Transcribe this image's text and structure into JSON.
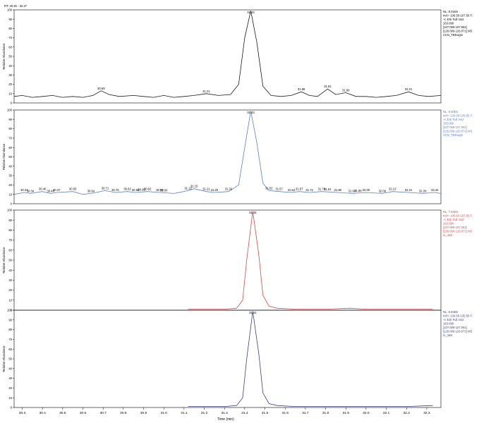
{
  "rt_range": "RT: 30.26 - 32.37",
  "x_axis": {
    "title": "Time (min)",
    "ticks": [
      "30.3",
      "30.4",
      "30.5",
      "30.6",
      "30.7",
      "30.8",
      "30.9",
      "31.0",
      "31.1",
      "31.2",
      "31.3",
      "31.4",
      "31.5",
      "31.6",
      "31.7",
      "31.8",
      "31.9",
      "32.0",
      "32.1",
      "32.2",
      "32.3"
    ]
  },
  "chart_data": [
    {
      "type": "line",
      "color": "#1a1a1a",
      "ylabel": "Relative Abundance",
      "ylim": [
        0,
        100
      ],
      "xlim": [
        30.26,
        32.37
      ],
      "info": [
        "NL: 8.01E5",
        "m/z= 106.50-107.50 F:",
        "+c ESI Full ms2",
        "163.090",
        "[107.009-107.061]",
        "[126.009-126.071] MS",
        "ACN_TEEwgm"
      ],
      "peaks": [
        {
          "x": 30.69,
          "label": "30.69"
        },
        {
          "x": 31.21,
          "label": "31.21"
        },
        {
          "x": 31.43,
          "label": "31.43"
        },
        {
          "x": 31.68,
          "label": "31.68"
        },
        {
          "x": 31.81,
          "label": "31.81"
        },
        {
          "x": 31.9,
          "label": "31.90"
        },
        {
          "x": 32.21,
          "label": "32.21"
        }
      ],
      "series": [
        {
          "x": [
            30.26,
            30.3,
            30.35,
            30.4,
            30.45,
            30.5,
            30.55,
            30.6,
            30.65,
            30.69,
            30.73,
            30.78,
            30.85,
            30.9,
            30.95,
            31.0,
            31.05,
            31.1,
            31.15,
            31.21,
            31.27,
            31.33,
            31.37,
            31.4,
            31.43,
            31.46,
            31.49,
            31.53,
            31.58,
            31.63,
            31.68,
            31.72,
            31.76,
            31.81,
            31.85,
            31.9,
            31.95,
            32.0,
            32.05,
            32.1,
            32.15,
            32.21,
            32.26,
            32.31,
            32.37
          ],
          "y": [
            7,
            8,
            6,
            7,
            8,
            6,
            7,
            6,
            8,
            13,
            9,
            7,
            8,
            7,
            6,
            8,
            6,
            7,
            8,
            10,
            8,
            9,
            20,
            70,
            99,
            65,
            18,
            8,
            7,
            8,
            12,
            8,
            7,
            15,
            9,
            11,
            7,
            7,
            6,
            7,
            8,
            12,
            8,
            7,
            8
          ]
        }
      ]
    },
    {
      "type": "line",
      "color": "#5a7fc4",
      "ylabel": "Relative Abundance",
      "ylim": [
        0,
        100
      ],
      "xlim": [
        30.26,
        32.37
      ],
      "info": [
        "NL: 9.00E5",
        "m/z= 134.50-135.50 F:",
        "+c ESI Full ms2",
        "163.090",
        "[107.009-107.061]",
        "[126.009-126.071] MS",
        "ACN_TEEwgm"
      ],
      "peaks": [
        {
          "x": 30.31,
          "label": "30.31"
        },
        {
          "x": 30.34,
          "label": "30.34"
        },
        {
          "x": 30.4,
          "label": "30.40"
        },
        {
          "x": 30.44,
          "label": "30.44"
        },
        {
          "x": 30.47,
          "label": "30.47"
        },
        {
          "x": 30.55,
          "label": "30.55"
        },
        {
          "x": 30.64,
          "label": "30.64"
        },
        {
          "x": 30.71,
          "label": "30.71"
        },
        {
          "x": 30.76,
          "label": "30.76"
        },
        {
          "x": 30.82,
          "label": "30.82"
        },
        {
          "x": 30.86,
          "label": "30.86"
        },
        {
          "x": 30.89,
          "label": "30.89"
        },
        {
          "x": 30.92,
          "label": "30.92"
        },
        {
          "x": 30.98,
          "label": "30.98"
        },
        {
          "x": 31.0,
          "label": "31.00"
        },
        {
          "x": 31.12,
          "label": "31.12"
        },
        {
          "x": 31.15,
          "label": "31.15"
        },
        {
          "x": 31.21,
          "label": "31.21"
        },
        {
          "x": 31.25,
          "label": "31.25"
        },
        {
          "x": 31.32,
          "label": "31.32"
        },
        {
          "x": 31.43,
          "label": "31.43"
        },
        {
          "x": 31.52,
          "label": "31.52"
        },
        {
          "x": 31.57,
          "label": "31.57"
        },
        {
          "x": 31.63,
          "label": "31.63"
        },
        {
          "x": 31.67,
          "label": "31.67"
        },
        {
          "x": 31.72,
          "label": "31.72"
        },
        {
          "x": 31.78,
          "label": "31.78"
        },
        {
          "x": 31.81,
          "label": "31.81"
        },
        {
          "x": 31.86,
          "label": "31.86"
        },
        {
          "x": 31.93,
          "label": "31.93"
        },
        {
          "x": 31.96,
          "label": "31.96"
        },
        {
          "x": 32.0,
          "label": "32.00"
        },
        {
          "x": 32.08,
          "label": "32.08"
        },
        {
          "x": 32.13,
          "label": "32.13"
        },
        {
          "x": 32.21,
          "label": "32.21"
        },
        {
          "x": 32.28,
          "label": "32.28"
        },
        {
          "x": 32.34,
          "label": "32.34"
        }
      ],
      "series": [
        {
          "x": [
            30.26,
            30.31,
            30.34,
            30.4,
            30.44,
            30.47,
            30.55,
            30.6,
            30.64,
            30.71,
            30.76,
            30.82,
            30.86,
            30.92,
            30.98,
            31.05,
            31.12,
            31.15,
            31.21,
            31.25,
            31.32,
            31.37,
            31.4,
            31.43,
            31.46,
            31.49,
            31.52,
            31.57,
            31.63,
            31.67,
            31.72,
            31.78,
            31.86,
            31.93,
            32.0,
            32.08,
            32.13,
            32.21,
            32.28,
            32.34,
            32.37
          ],
          "y": [
            10,
            12,
            11,
            13,
            11,
            12,
            13,
            10,
            11,
            14,
            12,
            13,
            12,
            13,
            12,
            11,
            14,
            16,
            13,
            12,
            13,
            20,
            60,
            99,
            65,
            22,
            14,
            13,
            12,
            13,
            12,
            13,
            12,
            11,
            12,
            11,
            13,
            12,
            11,
            12,
            11
          ]
        }
      ]
    },
    {
      "type": "line",
      "color": "#d24a4a",
      "ylabel": "Relative Abundance",
      "ylim": [
        0,
        100
      ],
      "xlim": [
        30.26,
        32.37
      ],
      "info": [
        "NL: 7.83E6",
        "m/z= 106.50-107.50 F:",
        "+c ESI Full ms2",
        "163.090",
        "[107.009-107.061]",
        "[126.009-126.071] MS",
        "rx_168"
      ],
      "peaks": [
        {
          "x": 31.44,
          "label": "31.44"
        }
      ],
      "series": [
        {
          "x": [
            31.12,
            31.3,
            31.36,
            31.39,
            31.41,
            31.44,
            31.47,
            31.49,
            31.52,
            31.56,
            31.65,
            31.8,
            31.92,
            32.0,
            32.2,
            32.33
          ],
          "y": [
            1,
            1,
            2,
            10,
            50,
            99,
            55,
            15,
            4,
            2,
            1,
            1,
            2,
            1,
            1,
            1
          ]
        }
      ]
    },
    {
      "type": "line",
      "color": "#3b3f8a",
      "ylabel": "Relative Abundance",
      "ylim": [
        0,
        100
      ],
      "xlim": [
        30.26,
        32.37
      ],
      "info": [
        "NL: 6.94E6",
        "m/z= 134.50-135.50 F:",
        "+c ESI Full ms2",
        "163.090",
        "[107.009-107.061]",
        "[126.009-126.071] MS",
        "rx_168"
      ],
      "peaks": [
        {
          "x": 31.44,
          "label": "31.44"
        }
      ],
      "series": [
        {
          "x": [
            31.12,
            31.3,
            31.36,
            31.39,
            31.41,
            31.44,
            31.47,
            31.49,
            31.52,
            31.56,
            31.65,
            31.8,
            31.92,
            32.0,
            32.2,
            32.33
          ],
          "y": [
            1,
            1,
            2,
            10,
            50,
            99,
            55,
            15,
            4,
            2,
            1,
            1,
            1,
            1,
            1,
            2
          ]
        }
      ]
    }
  ]
}
